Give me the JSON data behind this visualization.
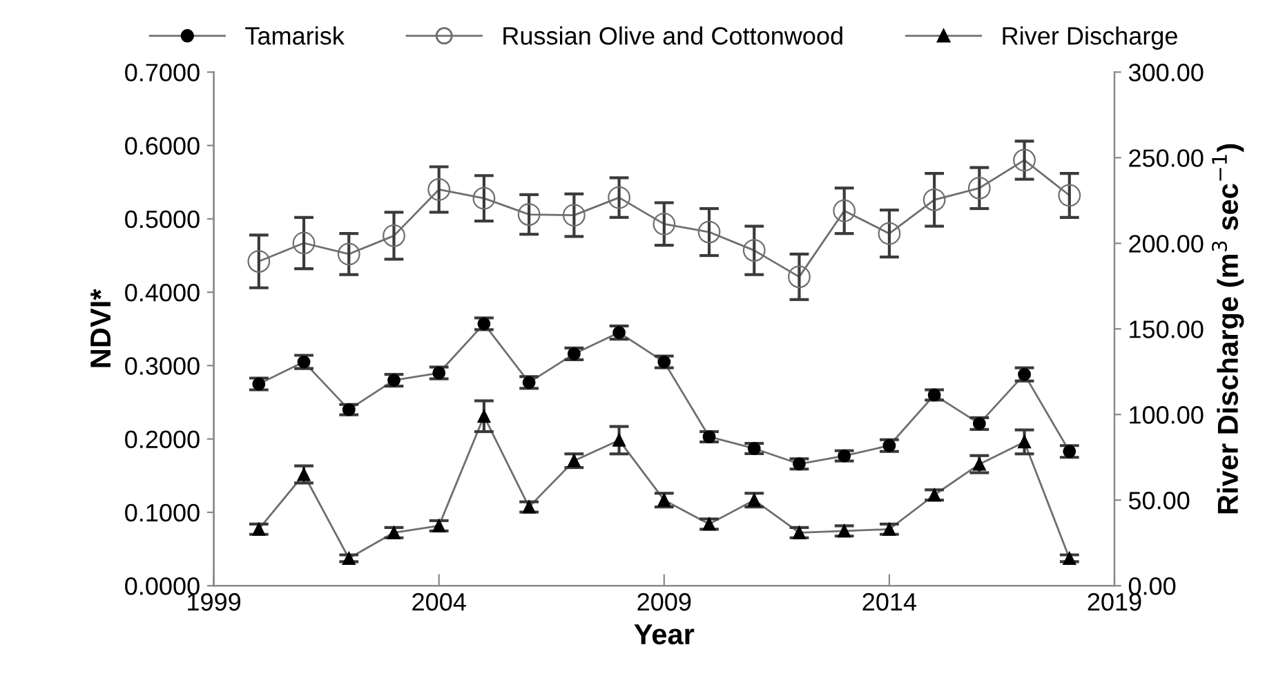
{
  "chart_data": {
    "type": "line",
    "xlabel": "Year",
    "ylabel": "NDVI*",
    "y2label": "River Discharge (m$^{3}$ sec$^{−1}$)",
    "x": [
      2000,
      2001,
      2002,
      2003,
      2004,
      2005,
      2006,
      2007,
      2008,
      2009,
      2010,
      2011,
      2012,
      2013,
      2014,
      2015,
      2016,
      2017,
      2018
    ],
    "series": [
      {
        "name": "Tamarisk",
        "color": "#000000",
        "marker": "circle",
        "values": [
          0.275,
          0.305,
          0.24,
          0.28,
          0.29,
          0.357,
          0.277,
          0.316,
          0.345,
          0.305,
          0.203,
          0.187,
          0.166,
          0.177,
          0.191,
          0.26,
          0.221,
          0.288,
          0.183
        ],
        "errors": [
          0.008,
          0.009,
          0.007,
          0.008,
          0.008,
          0.008,
          0.008,
          0.008,
          0.009,
          0.008,
          0.007,
          0.007,
          0.007,
          0.007,
          0.008,
          0.007,
          0.008,
          0.009,
          0.008
        ]
      },
      {
        "name": "Russian Olive and Cottonwood",
        "color": "#6e6e6e",
        "marker": "circle",
        "values": [
          0.442,
          0.467,
          0.452,
          0.477,
          0.54,
          0.528,
          0.506,
          0.505,
          0.529,
          0.493,
          0.482,
          0.457,
          0.421,
          0.511,
          0.48,
          0.526,
          0.542,
          0.58,
          0.532
        ],
        "errors": [
          0.036,
          0.035,
          0.028,
          0.032,
          0.031,
          0.031,
          0.027,
          0.029,
          0.027,
          0.029,
          0.032,
          0.033,
          0.031,
          0.031,
          0.032,
          0.036,
          0.028,
          0.026,
          0.03
        ]
      },
      {
        "name": "River Discharge",
        "color": "#000000",
        "marker": "triangle",
        "axis": "y2",
        "values": [
          33,
          65,
          16,
          31,
          35,
          99,
          46,
          73,
          85,
          50,
          36,
          50,
          31,
          32,
          33,
          53,
          71,
          84,
          16
        ],
        "errors": [
          3,
          5,
          2,
          3,
          3,
          9,
          3,
          4,
          8,
          4,
          3,
          4,
          3,
          3,
          3,
          3,
          5,
          7,
          2
        ]
      }
    ],
    "xlim": [
      1999,
      2019
    ],
    "xticks": [
      1999,
      2004,
      2009,
      2014,
      2019
    ],
    "ylim": [
      0,
      0.7
    ],
    "yticks": [
      {
        "value": 0,
        "label": "0.0000"
      },
      {
        "value": 0.1,
        "label": "0.1000"
      },
      {
        "value": 0.2,
        "label": "0.2000"
      },
      {
        "value": 0.3,
        "label": "0.3000"
      },
      {
        "value": 0.4,
        "label": "0.4000"
      },
      {
        "value": 0.5,
        "label": "0.5000"
      },
      {
        "value": 0.6,
        "label": "0.6000"
      },
      {
        "value": 0.7,
        "label": "0.7000"
      }
    ],
    "y2lim": [
      0,
      300
    ],
    "y2ticks": [
      {
        "value": 0,
        "label": "0.00"
      },
      {
        "value": 50,
        "label": "50.00"
      },
      {
        "value": 100,
        "label": "100.00"
      },
      {
        "value": 150,
        "label": "150.00"
      },
      {
        "value": 200,
        "label": "200.00"
      },
      {
        "value": 250,
        "label": "250.00"
      },
      {
        "value": 300,
        "label": "300.00"
      }
    ],
    "grid": false,
    "legend": "top",
    "line_style": "solid"
  }
}
